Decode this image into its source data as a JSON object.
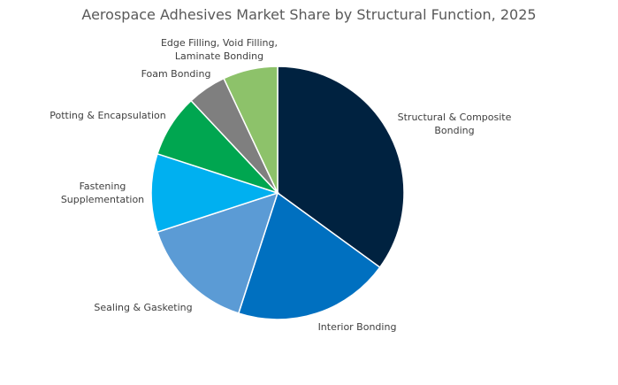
{
  "chart_data": {
    "type": "pie",
    "title": "Aerospace Adhesives Market Share by Structural Function, 2025",
    "slices": [
      {
        "label": "Structural & Composite Bonding",
        "label_lines": [
          "Structural & Composite",
          "Bonding"
        ],
        "value": 35,
        "color": "#002240"
      },
      {
        "label": "Interior Bonding",
        "label_lines": [
          "Interior Bonding"
        ],
        "value": 20,
        "color": "#0070C0"
      },
      {
        "label": "Sealing & Gasketing",
        "label_lines": [
          "Sealing & Gasketing"
        ],
        "value": 15,
        "color": "#5B9BD5"
      },
      {
        "label": "Fastening Supplementation",
        "label_lines": [
          "Fastening",
          "Supplementation"
        ],
        "value": 10,
        "color": "#00B0F0"
      },
      {
        "label": "Potting & Encapsulation",
        "label_lines": [
          "Potting & Encapsulation"
        ],
        "value": 8,
        "color": "#00A650"
      },
      {
        "label": "Foam Bonding",
        "label_lines": [
          "Foam Bonding"
        ],
        "value": 5,
        "color": "#7F7F7F"
      },
      {
        "label": "Edge Filling, Void Filling, Laminate Bonding",
        "label_lines": [
          "Edge Filling, Void Filling,",
          "Laminate Bonding"
        ],
        "value": 7,
        "color": "#8DC26A"
      }
    ]
  }
}
